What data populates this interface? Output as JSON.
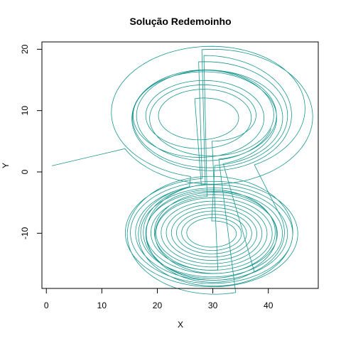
{
  "chart_data": {
    "type": "line",
    "title": "Solução Redemoinho",
    "xlabel": "X",
    "ylabel": "Y",
    "xlim": [
      -0.8,
      49.0
    ],
    "ylim": [
      -19.0,
      21.2
    ],
    "x_ticks": [
      0,
      10,
      20,
      30,
      40
    ],
    "y_ticks": [
      -10,
      0,
      10,
      20
    ],
    "grid": false,
    "legend": "none",
    "colors": {
      "line": "#19968F",
      "axis": "#000000",
      "background": "#FFFFFF"
    },
    "series": [
      {
        "start": [
          1,
          1
        ],
        "segments": [
          {
            "center": [
              30,
              9
            ],
            "rx": [
              18,
              18
            ],
            "ry": [
              11,
              11
            ],
            "turns": 0.7
          },
          {
            "center": [
              30,
              -10
            ],
            "rx": [
              12,
              12
            ],
            "ry": [
              8,
              8
            ],
            "turns": 0.6
          },
          {
            "center": [
              28,
              9
            ],
            "rx": [
              14,
              6
            ],
            "ry": [
              8,
              3
            ],
            "turns": 3.5
          },
          {
            "center": [
              30,
              -10
            ],
            "rx": [
              13,
              10
            ],
            "ry": [
              8,
              6
            ],
            "turns": 1.5
          },
          {
            "center": [
              29,
              9
            ],
            "rx": [
              8,
              16
            ],
            "ry": [
              4,
              10
            ],
            "turns": 2.5
          },
          {
            "center": [
              30,
              -10
            ],
            "rx": [
              10,
              13
            ],
            "ry": [
              6,
              8
            ],
            "turns": 1.8
          },
          {
            "center": [
              30,
              10
            ],
            "rx": [
              16,
              19
            ],
            "ry": [
              10,
              11
            ],
            "turns": 0.9
          },
          {
            "center": [
              30,
              -10
            ],
            "rx": [
              13,
              16
            ],
            "ry": [
              8,
              10
            ],
            "turns": 1.5
          },
          {
            "center": [
              29,
              9
            ],
            "rx": [
              12,
              15
            ],
            "ry": [
              7,
              9
            ],
            "turns": 1.5
          },
          {
            "center": [
              30,
              -10
            ],
            "rx": [
              16,
              4
            ],
            "ry": [
              9,
              2
            ],
            "turns": 13
          },
          {
            "center": [
              29,
              9
            ],
            "rx": [
              14,
              12
            ],
            "ry": [
              8,
              7
            ],
            "turns": 1.2
          }
        ]
      }
    ]
  }
}
